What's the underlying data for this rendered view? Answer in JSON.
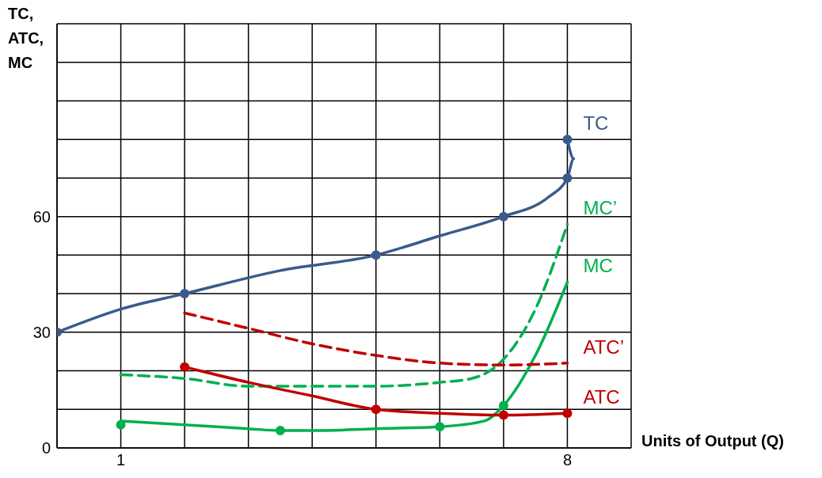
{
  "chart_data": {
    "type": "line",
    "xlabel": "Units of Output (Q)",
    "ylabel": "TC,\nATC,\nMC",
    "xlim": [
      0,
      9
    ],
    "ylim": [
      0,
      110
    ],
    "xticks": [
      {
        "value": 0,
        "label": null
      },
      1,
      {
        "value": 2,
        "label": null
      },
      {
        "value": 3,
        "label": null
      },
      {
        "value": 4,
        "label": null
      },
      {
        "value": 5,
        "label": null
      },
      {
        "value": 6,
        "label": null
      },
      {
        "value": 7,
        "label": null
      },
      8,
      {
        "value": 9,
        "label": null
      }
    ],
    "yticks": [
      0,
      {
        "value": 10,
        "label": null
      },
      {
        "value": 20,
        "label": null
      },
      30,
      {
        "value": 40,
        "label": null
      },
      {
        "value": 50,
        "label": null
      },
      60,
      {
        "value": 70,
        "label": null
      },
      {
        "value": 80,
        "label": null
      },
      {
        "value": 90,
        "label": null
      },
      {
        "value": 100,
        "label": null
      },
      {
        "value": 110,
        "label": null
      }
    ],
    "grid": true,
    "legend": false,
    "series": [
      {
        "name": "TC",
        "color": "#3b5a8c",
        "line_style": "solid",
        "marker": "none",
        "x": [
          0,
          1,
          2,
          3.5,
          5,
          6,
          7,
          7.7,
          8,
          8.1,
          8
        ],
        "values": [
          30,
          36,
          40,
          46,
          50,
          55,
          60,
          65,
          70,
          75,
          80
        ]
      },
      {
        "type": "scatter",
        "color": "#3b5a8c",
        "x": [
          0,
          2,
          5,
          7,
          8,
          8
        ],
        "values": [
          30,
          40,
          50,
          60,
          70,
          80
        ]
      },
      {
        "name": "MC’",
        "color": "#00b050",
        "line_style": "dashed",
        "marker": "none",
        "x": [
          1,
          2,
          3,
          4,
          5,
          6,
          6.5,
          7,
          7.5,
          8
        ],
        "values": [
          19,
          18,
          16,
          16,
          16,
          17,
          18,
          23,
          36,
          58
        ]
      },
      {
        "name": "MC",
        "color": "#00b050",
        "line_style": "solid",
        "marker": "none",
        "x": [
          1,
          2,
          3,
          3.5,
          4,
          5,
          6,
          6.7,
          7,
          7.5,
          8
        ],
        "values": [
          7,
          6,
          5,
          4.5,
          4.5,
          5,
          5.5,
          7,
          11,
          24,
          43
        ]
      },
      {
        "type": "scatter",
        "color": "#00b050",
        "x": [
          1,
          3.5,
          6,
          7
        ],
        "values": [
          6,
          4.5,
          5.5,
          11
        ]
      },
      {
        "name": "ATC’",
        "color": "#c00000",
        "line_style": "dashed",
        "marker": "none",
        "x": [
          2,
          3,
          4,
          5,
          6,
          7,
          8
        ],
        "values": [
          35,
          31,
          27,
          24,
          22,
          21.5,
          22
        ]
      },
      {
        "name": "ATC",
        "color": "#c00000",
        "line_style": "solid",
        "marker": "none",
        "x": [
          2,
          3,
          4,
          5,
          6,
          7,
          8
        ],
        "values": [
          21,
          17,
          13.5,
          10,
          9,
          8.5,
          9
        ]
      },
      {
        "type": "scatter",
        "color": "#c00000",
        "x": [
          2,
          5,
          7,
          8
        ],
        "values": [
          21,
          10,
          8.5,
          9
        ]
      }
    ]
  }
}
